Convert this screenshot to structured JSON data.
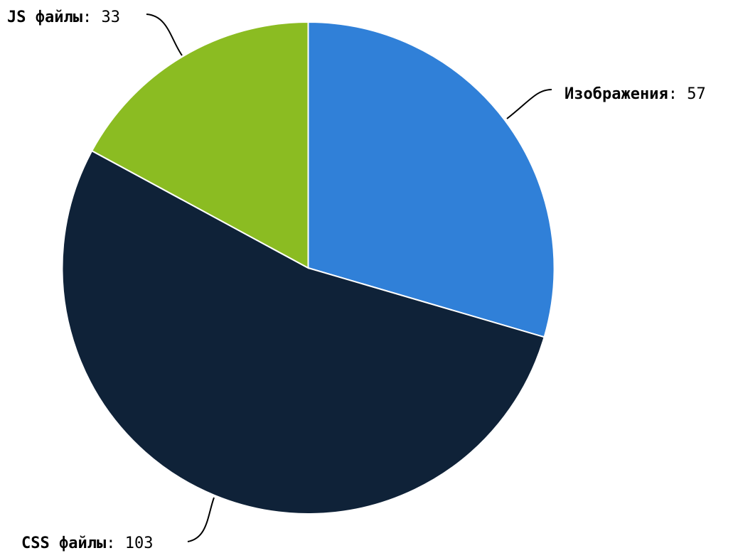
{
  "chart_data": {
    "type": "pie",
    "slices": [
      {
        "name": "Изображения",
        "value": 57,
        "color": "#3080D8"
      },
      {
        "name": "CSS файлы",
        "value": 103,
        "color": "#0F2238"
      },
      {
        "name": "JS файлы",
        "value": 33,
        "color": "#8BBC22"
      }
    ],
    "start_angle": "12 o'clock",
    "direction": "clockwise",
    "legend": "none",
    "labels": "outside with connector lines",
    "label_separator": ": "
  }
}
